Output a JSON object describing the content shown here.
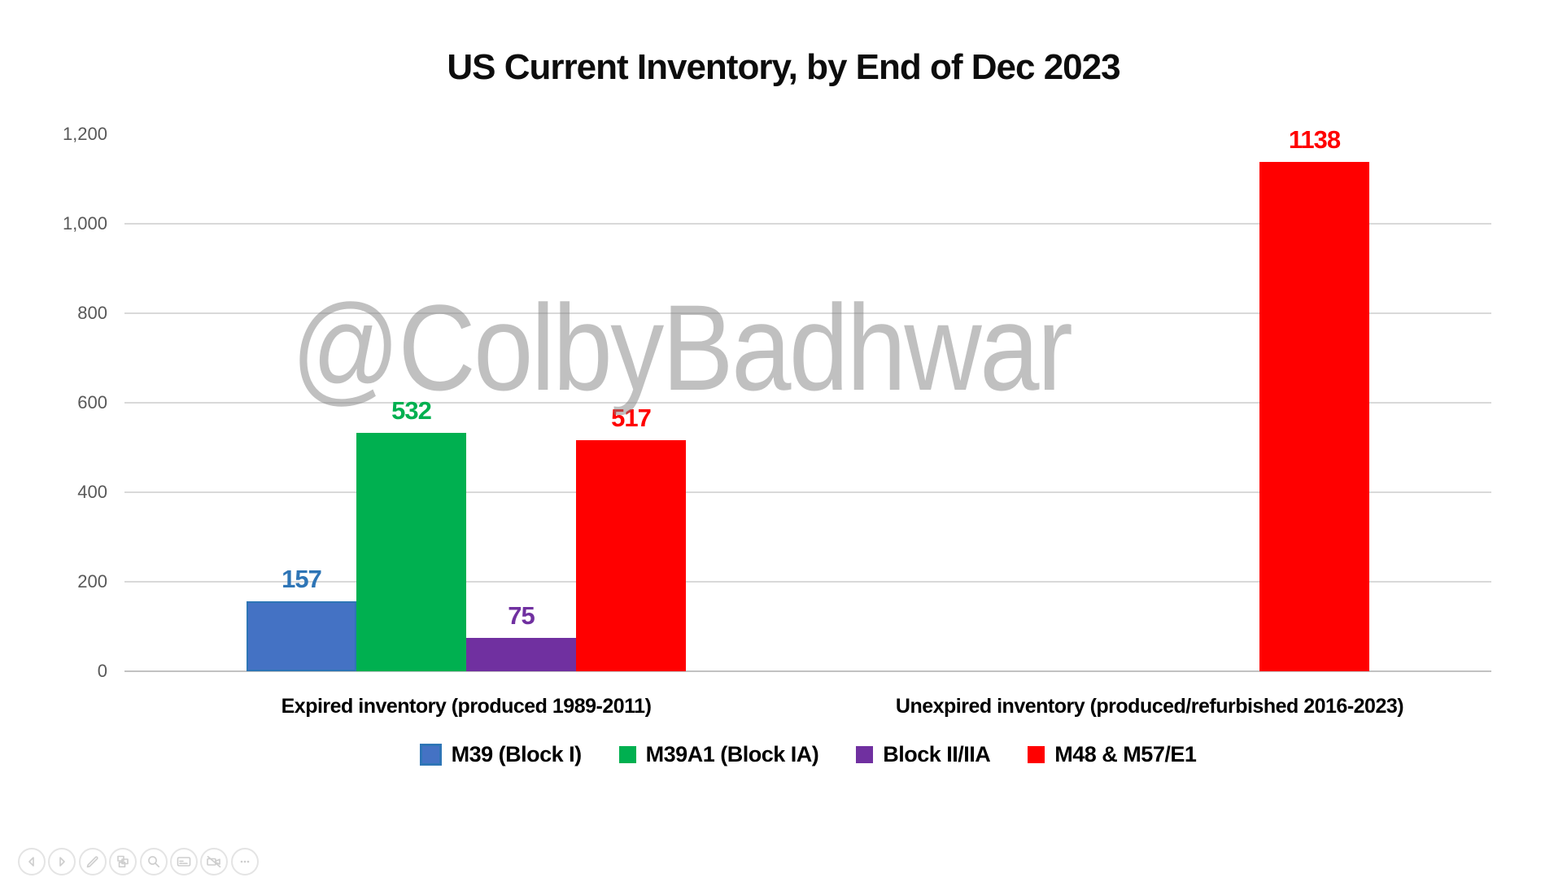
{
  "title": "US Current Inventory, by End of Dec 2023",
  "watermark": "@ColbyBadhwar",
  "chart_data": {
    "type": "bar",
    "title": "US Current Inventory, by End of Dec 2023",
    "categories": [
      "Expired inventory (produced 1989-2011)",
      "Unexpired inventory (produced/refurbished 2016-2023)"
    ],
    "series": [
      {
        "name": "M39 (Block I)",
        "color": "#4472C4",
        "border_color": "#2E75B6",
        "label_color": "#2E75B6",
        "values": [
          157,
          null
        ]
      },
      {
        "name": "M39A1 (Block IA)",
        "color": "#00B050",
        "border_color": null,
        "label_color": "#00B050",
        "values": [
          532,
          null
        ]
      },
      {
        "name": "Block II/IIA",
        "color": "#7030A0",
        "border_color": null,
        "label_color": "#7030A0",
        "values": [
          75,
          null
        ]
      },
      {
        "name": "M48 & M57/E1",
        "color": "#FF0000",
        "border_color": null,
        "label_color": "#FF0000",
        "values": [
          517,
          1138
        ]
      }
    ],
    "ylim": [
      0,
      1200
    ],
    "yticks": [
      {
        "label": "0",
        "value": 0
      },
      {
        "label": "200",
        "value": 200
      },
      {
        "label": "400",
        "value": 400
      },
      {
        "label": "600",
        "value": 600
      },
      {
        "label": "800",
        "value": 800
      },
      {
        "label": "1,000",
        "value": 1000
      },
      {
        "label": "1,200",
        "value": 1200
      }
    ],
    "grid": true,
    "value_labels": true,
    "legend_position": "bottom",
    "colors": {
      "gridline": "#d9d9d9",
      "axis_line": "#c2c2c2",
      "tick_text": "#595959",
      "title_text": "#0d0d0d",
      "watermark_text": "#828282"
    }
  },
  "toolbar": {
    "buttons": [
      {
        "name": "previous-slide",
        "icon": "chevron-left-icon"
      },
      {
        "name": "next-slide",
        "icon": "chevron-right-icon"
      },
      {
        "name": "pen",
        "icon": "pen-icon"
      },
      {
        "name": "see-all-slides",
        "icon": "slides-grid-icon"
      },
      {
        "name": "zoom",
        "icon": "magnifier-icon"
      },
      {
        "name": "captions",
        "icon": "captions-icon"
      },
      {
        "name": "camera-off",
        "icon": "camera-off-icon"
      },
      {
        "name": "more-options",
        "icon": "ellipsis-icon"
      }
    ]
  }
}
